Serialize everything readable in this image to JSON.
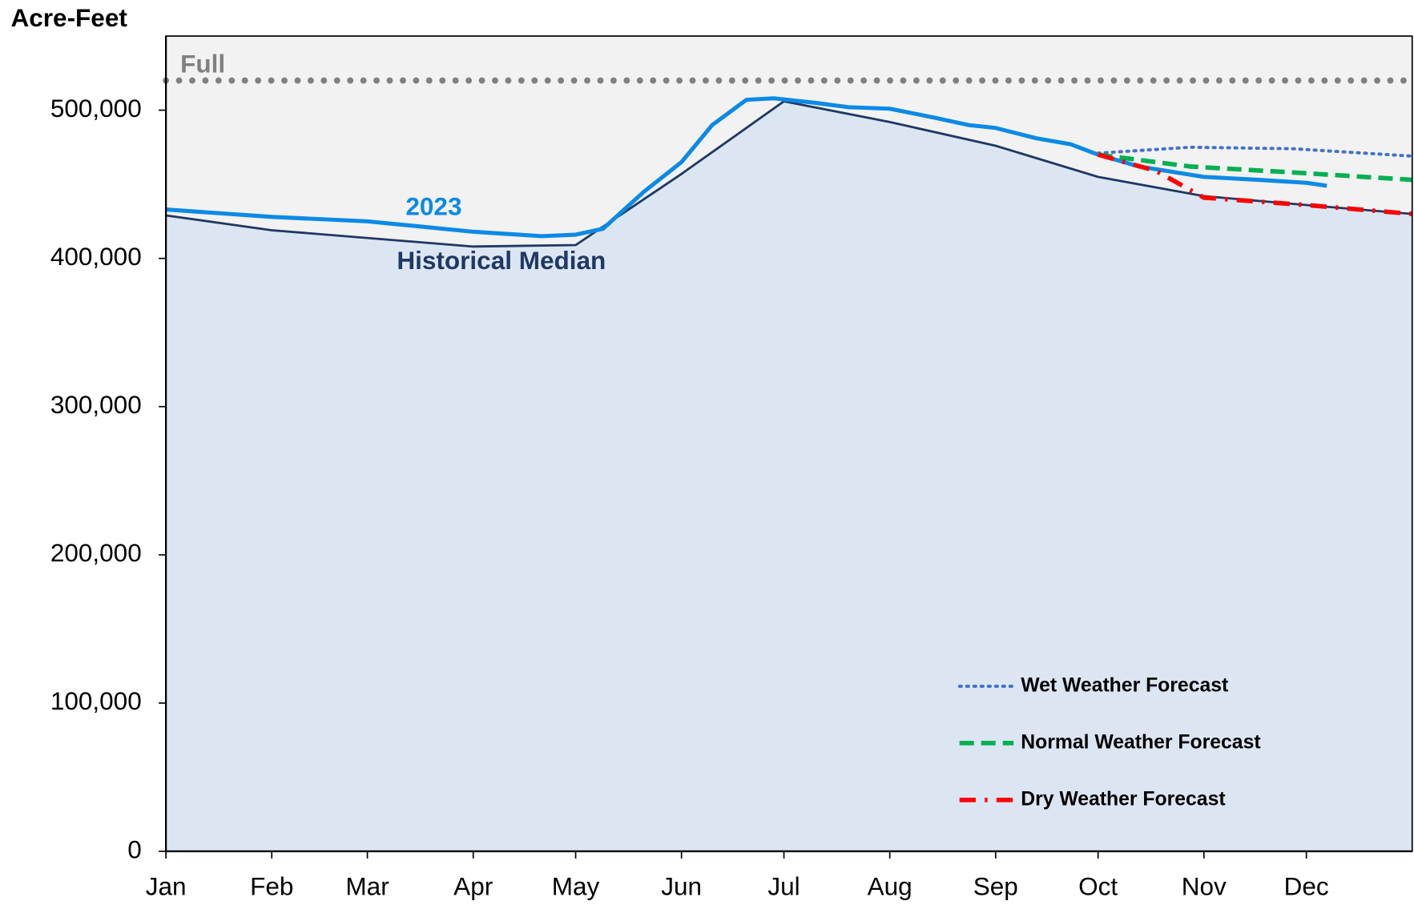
{
  "chart_data": {
    "type": "line",
    "y_label": "Acre-Feet",
    "xlim": [
      0,
      365
    ],
    "xticks": [
      {
        "value": 0,
        "label": "Jan"
      },
      {
        "value": 31,
        "label": "Feb"
      },
      {
        "value": 59,
        "label": "Mar"
      },
      {
        "value": 90,
        "label": "Apr"
      },
      {
        "value": 120,
        "label": "May"
      },
      {
        "value": 151,
        "label": "Jun"
      },
      {
        "value": 181,
        "label": "Jul"
      },
      {
        "value": 212,
        "label": "Aug"
      },
      {
        "value": 243,
        "label": "Sep"
      },
      {
        "value": 273,
        "label": "Oct"
      },
      {
        "value": 304,
        "label": "Nov"
      },
      {
        "value": 334,
        "label": "Dec"
      }
    ],
    "ylim": [
      0,
      550000
    ],
    "yticks": [
      0,
      {
        "value": 100000,
        "label": "100,000"
      },
      {
        "value": 200000,
        "label": "200,000"
      },
      {
        "value": 300000,
        "label": "300,000"
      },
      {
        "value": 400000,
        "label": "400,000"
      },
      {
        "value": 500000,
        "label": "500,000"
      }
    ],
    "grid": false,
    "series": [
      {
        "name": "Full",
        "color": "#808080",
        "style": "dots",
        "in_legend": false,
        "x": [
          0,
          365
        ],
        "values": [
          520000,
          520000
        ]
      },
      {
        "name": "Historical Median",
        "color": "#1f3864",
        "style": "area",
        "fill": "#dce6f2",
        "in_legend": false,
        "x": [
          0,
          31,
          90,
          120,
          151,
          181,
          212,
          243,
          273,
          304,
          334,
          365
        ],
        "values": [
          429000,
          419000,
          408000,
          409000,
          457000,
          506000,
          492000,
          476000,
          455000,
          442000,
          436000,
          430000
        ]
      },
      {
        "name": "2023",
        "color": "#0b8ae6",
        "style": "solid",
        "in_legend": false,
        "x": [
          0,
          31,
          59,
          90,
          110,
          120,
          128,
          140,
          151,
          160,
          170,
          178,
          190,
          200,
          212,
          225,
          235,
          243,
          255,
          265,
          273,
          285,
          304,
          320,
          334,
          340
        ],
        "values": [
          433000,
          428000,
          425000,
          418000,
          415000,
          416000,
          420000,
          445000,
          465000,
          490000,
          507000,
          508000,
          505000,
          502000,
          501000,
          495000,
          490000,
          488000,
          481000,
          477000,
          470000,
          462000,
          455000,
          453000,
          451000,
          449000
        ]
      },
      {
        "name": "Wet Weather Forecast",
        "color": "#4472c4",
        "style": "dotted",
        "in_legend": true,
        "x": [
          273,
          300,
          330,
          365
        ],
        "values": [
          471000,
          475000,
          474000,
          469000
        ]
      },
      {
        "name": "Normal Weather Forecast",
        "color": "#00b050",
        "style": "dashed",
        "in_legend": true,
        "x": [
          273,
          300,
          330,
          365
        ],
        "values": [
          470000,
          462000,
          458000,
          453000
        ]
      },
      {
        "name": "Dry Weather Forecast",
        "color": "#ff0000",
        "style": "dashdot",
        "in_legend": true,
        "x": [
          273,
          290,
          304,
          334,
          365
        ],
        "values": [
          470000,
          459000,
          441000,
          436000,
          430000
        ]
      }
    ]
  }
}
